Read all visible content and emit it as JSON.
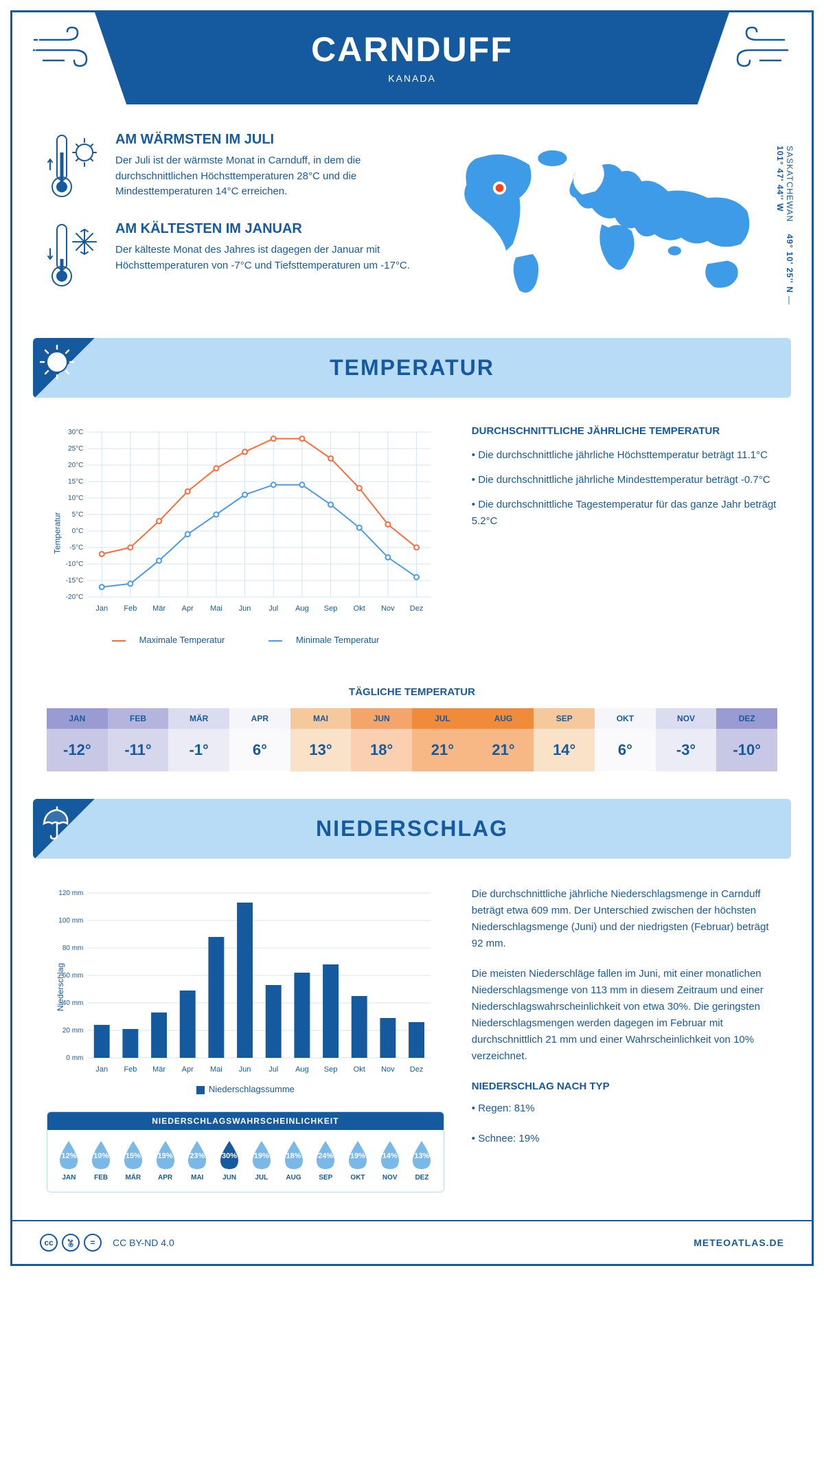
{
  "header": {
    "title": "CARNDUFF",
    "subtitle": "KANADA"
  },
  "coords": {
    "region": "SASKATCHEWAN",
    "lat": "49° 10' 25'' N",
    "lon": "101° 47' 44'' W"
  },
  "warm": {
    "title": "AM WÄRMSTEN IM JULI",
    "text": "Der Juli ist der wärmste Monat in Carnduff, in dem die durchschnittlichen Höchsttemperaturen 28°C und die Mindesttemperaturen 14°C erreichen."
  },
  "cold": {
    "title": "AM KÄLTESTEN IM JANUAR",
    "text": "Der kälteste Monat des Jahres ist dagegen der Januar mit Höchsttemperaturen von -7°C und Tiefsttemperaturen um -17°C."
  },
  "temp_section": {
    "title": "TEMPERATUR",
    "avg_title": "DURCHSCHNITTLICHE JÄHRLICHE TEMPERATUR",
    "bullets": [
      "• Die durchschnittliche jährliche Höchsttemperatur beträgt 11.1°C",
      "• Die durchschnittliche jährliche Mindesttemperatur beträgt -0.7°C",
      "• Die durchschnittliche Tagestemperatur für das ganze Jahr beträgt 5.2°C"
    ],
    "legend_max": "Maximale Temperatur",
    "legend_min": "Minimale Temperatur",
    "y_label": "Temperatur",
    "daily_title": "TÄGLICHE TEMPERATUR"
  },
  "temp_chart": {
    "months": [
      "Jan",
      "Feb",
      "Mär",
      "Apr",
      "Mai",
      "Jun",
      "Jul",
      "Aug",
      "Sep",
      "Okt",
      "Nov",
      "Dez"
    ],
    "max_values": [
      -7,
      -5,
      3,
      12,
      19,
      24,
      28,
      28,
      22,
      13,
      2,
      -5
    ],
    "min_values": [
      -17,
      -16,
      -9,
      -1,
      5,
      11,
      14,
      14,
      8,
      1,
      -8,
      -14
    ],
    "max_color": "#ff6b35",
    "min_color": "#4a9be8",
    "ylim": [
      -20,
      30
    ],
    "ytick_step": 5,
    "grid_color": "#d0e4f5",
    "line_width": 2
  },
  "daily_temp": {
    "months": [
      "JAN",
      "FEB",
      "MÄR",
      "APR",
      "MAI",
      "JUN",
      "JUL",
      "AUG",
      "SEP",
      "OKT",
      "NOV",
      "DEZ"
    ],
    "values": [
      "-12°",
      "-11°",
      "-1°",
      "6°",
      "13°",
      "18°",
      "21°",
      "21°",
      "14°",
      "6°",
      "-3°",
      "-10°"
    ],
    "header_colors": [
      "#9b9bd4",
      "#b4b4dc",
      "#dcdcf0",
      "#f5f5fa",
      "#f5c99b",
      "#f5a56b",
      "#f08b3c",
      "#f08b3c",
      "#f5c99b",
      "#f5f5fa",
      "#dcdcf0",
      "#9b9bd4"
    ],
    "value_colors": [
      "#c8c8e6",
      "#d6d6ec",
      "#ececf7",
      "#fafafc",
      "#fae2c8",
      "#fad0b0",
      "#f7b885",
      "#f7b885",
      "#fae2c8",
      "#fafafc",
      "#ececf7",
      "#c8c8e6"
    ]
  },
  "precip_section": {
    "title": "NIEDERSCHLAG",
    "y_label": "Niederschlag",
    "legend": "Niederschlagssumme",
    "text1": "Die durchschnittliche jährliche Niederschlagsmenge in Carnduff beträgt etwa 609 mm. Der Unterschied zwischen der höchsten Niederschlagsmenge (Juni) und der niedrigsten (Februar) beträgt 92 mm.",
    "text2": "Die meisten Niederschläge fallen im Juni, mit einer monatlichen Niederschlagsmenge von 113 mm in diesem Zeitraum und einer Niederschlagswahrscheinlichkeit von etwa 30%. Die geringsten Niederschlagsmengen werden dagegen im Februar mit durchschnittlich 21 mm und einer Wahrscheinlichkeit von 10% verzeichnet.",
    "type_title": "NIEDERSCHLAG NACH TYP",
    "type_rain": "• Regen: 81%",
    "type_snow": "• Schnee: 19%"
  },
  "precip_chart": {
    "months": [
      "Jan",
      "Feb",
      "Mär",
      "Apr",
      "Mai",
      "Jun",
      "Jul",
      "Aug",
      "Sep",
      "Okt",
      "Nov",
      "Dez"
    ],
    "values": [
      24,
      21,
      33,
      49,
      88,
      113,
      53,
      62,
      68,
      45,
      29,
      26
    ],
    "bar_color": "#155a9e",
    "ylim": [
      0,
      120
    ],
    "ytick_step": 20,
    "grid_color": "#d0e4f5"
  },
  "probability": {
    "title": "NIEDERSCHLAGSWAHRSCHEINLICHKEIT",
    "months": [
      "JAN",
      "FEB",
      "MÄR",
      "APR",
      "MAI",
      "JUN",
      "JUL",
      "AUG",
      "SEP",
      "OKT",
      "NOV",
      "DEZ"
    ],
    "values": [
      "12%",
      "10%",
      "15%",
      "19%",
      "23%",
      "30%",
      "19%",
      "18%",
      "24%",
      "19%",
      "14%",
      "13%"
    ],
    "max_index": 5,
    "light_color": "#7ab8e8",
    "dark_color": "#155a9e"
  },
  "footer": {
    "license": "CC BY-ND 4.0",
    "site": "METEOATLAS.DE"
  }
}
